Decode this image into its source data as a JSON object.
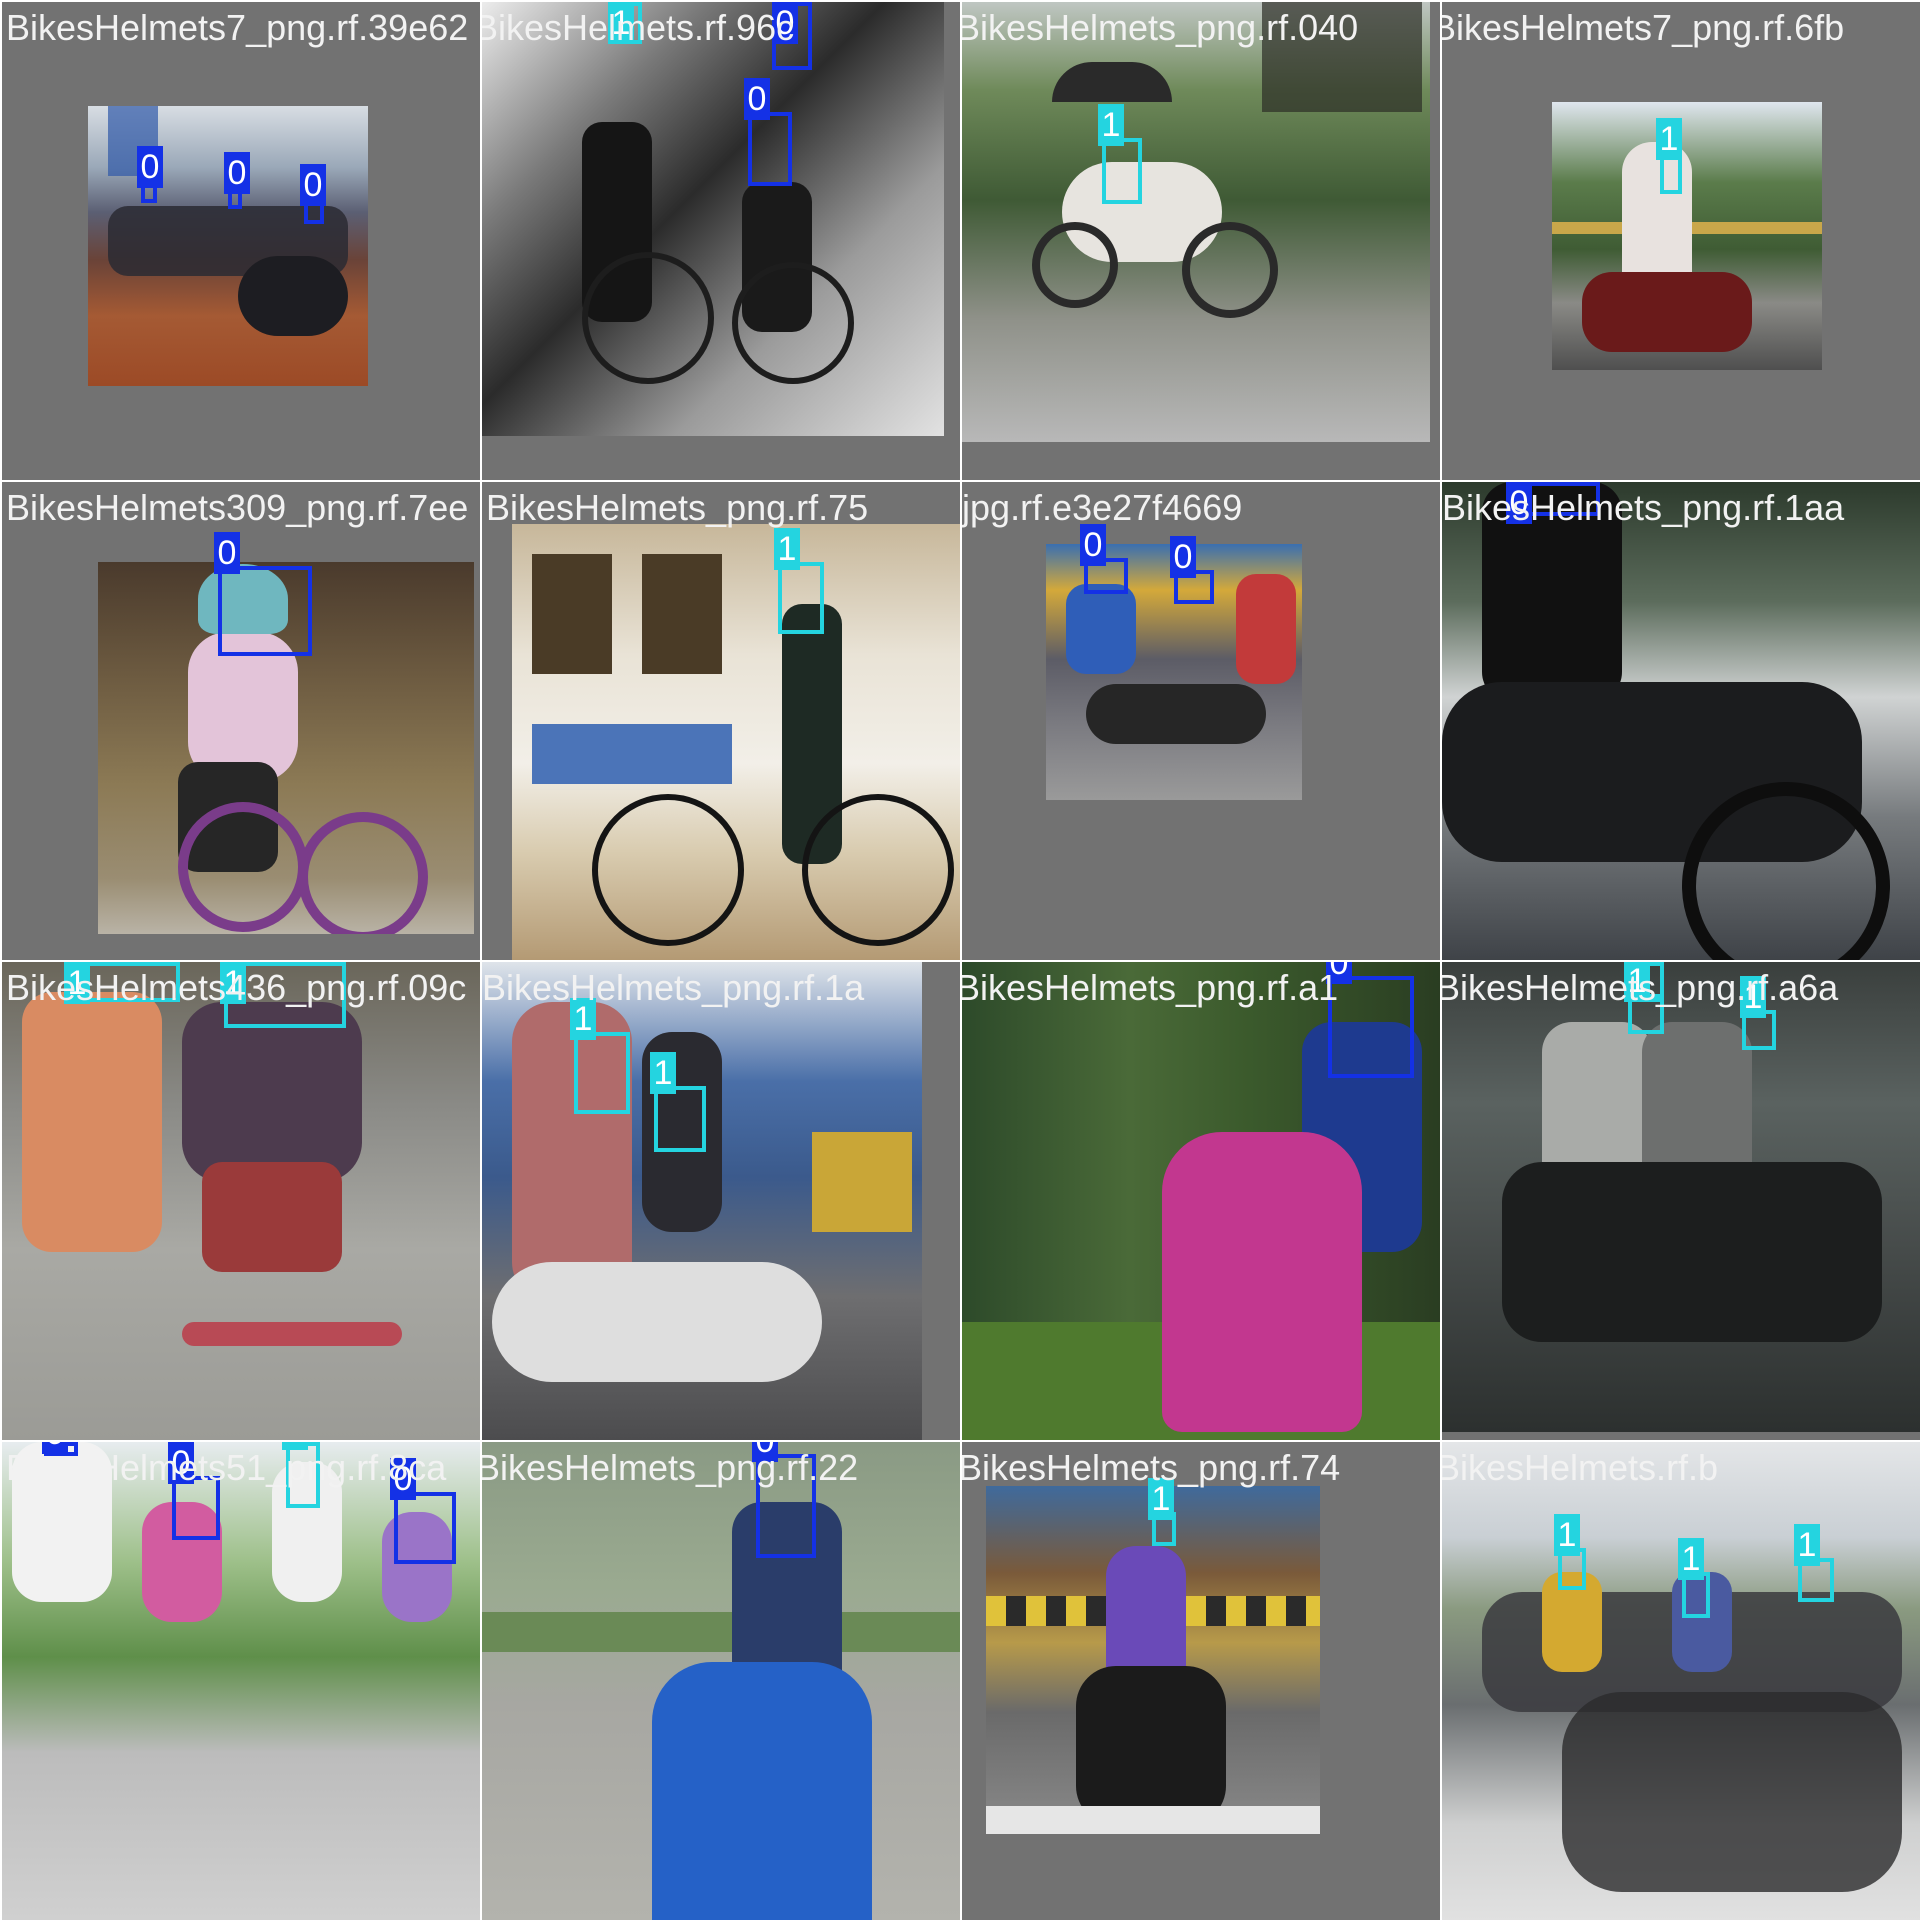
{
  "colors": {
    "class_0": "#1431e6",
    "class_1": "#24d4e0",
    "tile_background": "#727272",
    "filename_text": "#f2f2f2"
  },
  "tiles": [
    {
      "filename": "BikesHelmets7_png.rf.39e62",
      "boxes": [
        {
          "label": "0"
        },
        {
          "label": "0"
        },
        {
          "label": "0"
        }
      ]
    },
    {
      "filename": "BikesHelmets.rf.96c",
      "boxes": [
        {
          "label": "1"
        },
        {
          "label": "0"
        },
        {
          "label": "0"
        }
      ]
    },
    {
      "filename": "BikesHelmets_png.rf.040",
      "boxes": [
        {
          "label": "1"
        }
      ]
    },
    {
      "filename": "BikesHelmets7_png.rf.6fb",
      "boxes": [
        {
          "label": "1"
        }
      ]
    },
    {
      "filename": "BikesHelmets309_png.rf.7ee",
      "boxes": [
        {
          "label": "0"
        }
      ]
    },
    {
      "filename": "BikesHelmets_png.rf.75",
      "boxes": [
        {
          "label": "1"
        }
      ]
    },
    {
      "filename": "_jpg.rf.e3e27f4669",
      "boxes": [
        {
          "label": "0"
        },
        {
          "label": "0"
        }
      ]
    },
    {
      "filename": "BikesHelmets_png.rf.1aa",
      "boxes": [
        {
          "label": "0"
        }
      ]
    },
    {
      "filename": "BikesHelmets436_png.rf.09c",
      "boxes": [
        {
          "label": "1"
        },
        {
          "label": "1"
        }
      ]
    },
    {
      "filename": "BikesHelmets_png.rf.1a",
      "boxes": [
        {
          "label": "1"
        },
        {
          "label": "1"
        }
      ]
    },
    {
      "filename": "BikesHelmets_png.rf.a1",
      "boxes": [
        {
          "label": "0"
        }
      ]
    },
    {
      "filename": "BikesHelmets_png.rf.a6a",
      "boxes": [
        {
          "label": "1"
        },
        {
          "label": "1"
        },
        {
          "label": "1"
        }
      ]
    },
    {
      "filename": "BikesHelmets51_png.rf.8ca",
      "boxes": [
        {
          "label": "0"
        },
        {
          "label": "0"
        },
        {
          "label": "1"
        },
        {
          "label": "0"
        }
      ]
    },
    {
      "filename": "BikesHelmets_png.rf.22",
      "boxes": [
        {
          "label": "0"
        }
      ]
    },
    {
      "filename": "BikesHelmets_png.rf.74",
      "boxes": [
        {
          "label": "1"
        }
      ]
    },
    {
      "filename": "BikesHelmets.rf.b",
      "boxes": [
        {
          "label": "1"
        },
        {
          "label": "1"
        },
        {
          "label": "1"
        }
      ]
    }
  ]
}
